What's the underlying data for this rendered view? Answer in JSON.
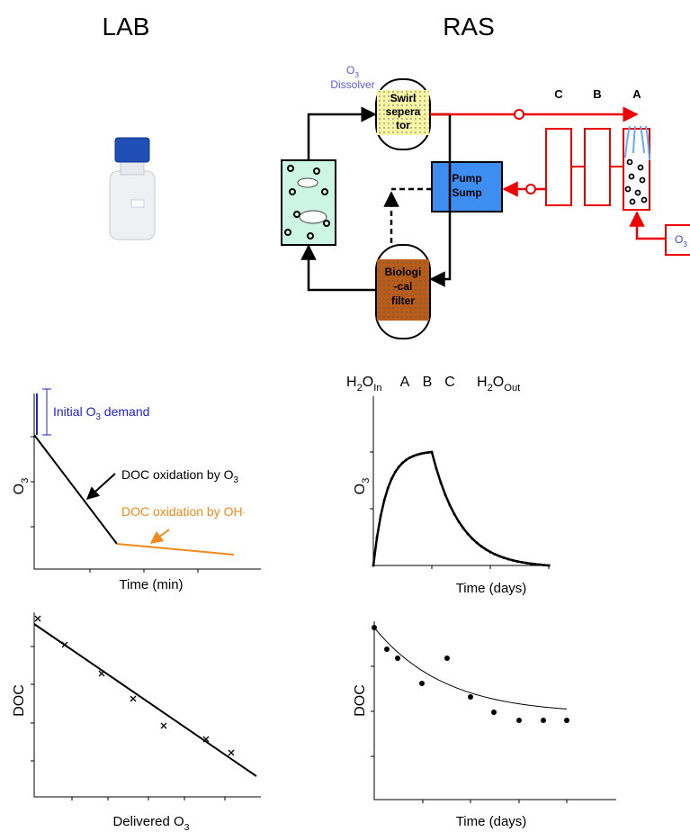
{
  "header": {
    "lab": "LAB",
    "ras": "RAS"
  },
  "diagram": {
    "dissolver": [
      "O",
      "3",
      "Dissolver"
    ],
    "separator": [
      "Swirl",
      "sepera",
      "tor"
    ],
    "pump": [
      "Pump",
      "Sump"
    ],
    "biofilter": [
      "Biologi",
      "-cal",
      "filter"
    ],
    "columns": [
      "C",
      "B",
      "A"
    ],
    "ozone_box": [
      "O",
      "3"
    ]
  },
  "plots": [
    {
      "y_label": [
        "O",
        "3"
      ],
      "x_label": "Time (min)",
      "annotations": {
        "demand": [
          "Initial O",
          "3",
          " demand"
        ],
        "ozone": [
          "DOC oxidation by O",
          "3"
        ],
        "radical": [
          "DOC oxidation by OH",
          "·"
        ]
      }
    },
    {
      "y_label": [
        "O",
        "3"
      ],
      "x_label": "Time (days)",
      "stages": [
        [
          "H",
          "2",
          "O",
          "In"
        ],
        "A",
        "B",
        "C",
        [
          "H",
          "2",
          "O",
          "Out"
        ]
      ]
    },
    {
      "y_label": "DOC",
      "x_label": [
        "Delivered O",
        "3"
      ]
    },
    {
      "y_label": "DOC",
      "x_label": "Time (days)"
    }
  ]
}
